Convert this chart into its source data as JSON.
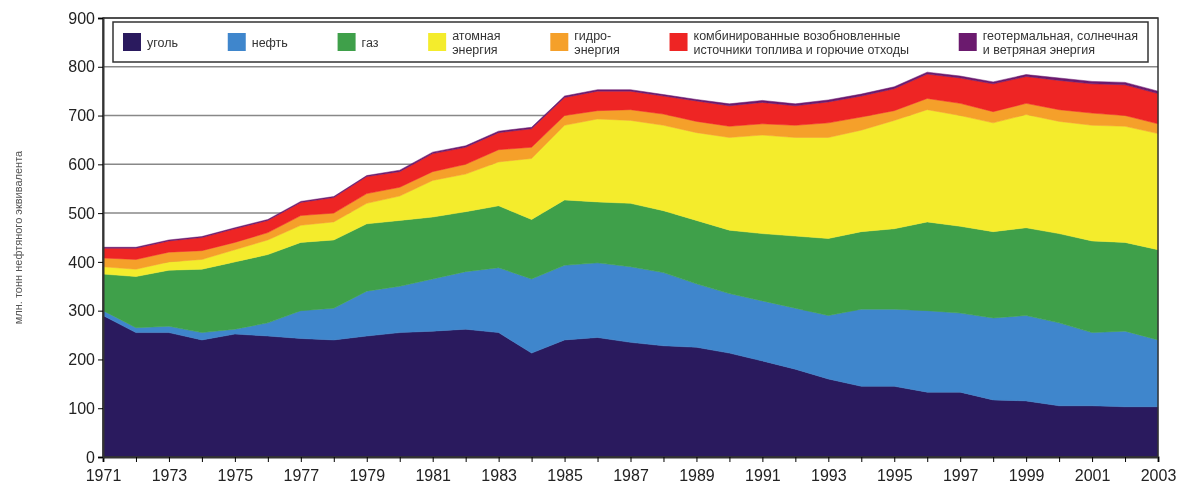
{
  "chart_data": {
    "type": "area",
    "stacked": true,
    "ylabel": "млн. тонн нефтяного эквивалента",
    "x": [
      1971,
      1972,
      1973,
      1974,
      1975,
      1976,
      1977,
      1978,
      1979,
      1980,
      1981,
      1982,
      1983,
      1984,
      1985,
      1986,
      1987,
      1988,
      1989,
      1990,
      1991,
      1992,
      1993,
      1994,
      1995,
      1996,
      1997,
      1998,
      1999,
      2000,
      2001,
      2002,
      2003
    ],
    "xlim": [
      1971,
      2003
    ],
    "xticks": [
      1971,
      {
        "value": 1972,
        "label": null
      },
      1973,
      {
        "value": 1974,
        "label": null
      },
      1975,
      {
        "value": 1976,
        "label": null
      },
      1977,
      {
        "value": 1978,
        "label": null
      },
      1979,
      {
        "value": 1980,
        "label": null
      },
      1981,
      {
        "value": 1982,
        "label": null
      },
      1983,
      {
        "value": 1984,
        "label": null
      },
      1985,
      {
        "value": 1986,
        "label": null
      },
      1987,
      {
        "value": 1988,
        "label": null
      },
      1989,
      {
        "value": 1990,
        "label": null
      },
      1991,
      {
        "value": 1992,
        "label": null
      },
      1993,
      {
        "value": 1994,
        "label": null
      },
      1995,
      {
        "value": 1996,
        "label": null
      },
      1997,
      {
        "value": 1998,
        "label": null
      },
      1999,
      {
        "value": 2000,
        "label": null
      },
      2001,
      {
        "value": 2002,
        "label": null
      },
      2003
    ],
    "ylim": [
      0,
      900
    ],
    "yticks": [
      0,
      100,
      200,
      300,
      400,
      500,
      600,
      700,
      800,
      900
    ],
    "grid": "y",
    "legend": "top",
    "series": [
      {
        "name": "уголь",
        "color": "#2a1a5e",
        "values": [
          290,
          255,
          255,
          240,
          252,
          248,
          243,
          240,
          248,
          255,
          258,
          262,
          255,
          213,
          240,
          245,
          235,
          228,
          225,
          213,
          197,
          180,
          160,
          145,
          145,
          133,
          133,
          117,
          115,
          105,
          105,
          103,
          103
        ]
      },
      {
        "name": "нефть",
        "color": "#3f86cc",
        "values": [
          10,
          10,
          13,
          15,
          10,
          27,
          57,
          65,
          92,
          95,
          107,
          118,
          133,
          152,
          153,
          153,
          155,
          150,
          130,
          122,
          123,
          125,
          130,
          158,
          158,
          167,
          162,
          168,
          175,
          170,
          150,
          155,
          137
        ]
      },
      {
        "name": "газ",
        "color": "#3fa04a",
        "values": [
          75,
          105,
          115,
          130,
          138,
          140,
          140,
          140,
          138,
          135,
          127,
          123,
          127,
          122,
          134,
          125,
          130,
          127,
          130,
          130,
          138,
          148,
          158,
          159,
          165,
          182,
          178,
          177,
          180,
          183,
          188,
          182,
          185
        ]
      },
      {
        "name": "атомная энергия",
        "color": "#f4ec2c",
        "values": [
          15,
          15,
          17,
          20,
          25,
          30,
          35,
          37,
          42,
          50,
          75,
          77,
          90,
          125,
          153,
          170,
          170,
          175,
          180,
          190,
          202,
          202,
          207,
          208,
          222,
          230,
          227,
          223,
          232,
          230,
          237,
          238,
          238
        ]
      },
      {
        "name": "гидро-энергия",
        "color": "#f5a02a",
        "values": [
          18,
          20,
          20,
          18,
          15,
          15,
          20,
          18,
          20,
          18,
          18,
          20,
          25,
          23,
          20,
          17,
          22,
          23,
          23,
          23,
          23,
          25,
          30,
          27,
          20,
          23,
          25,
          23,
          23,
          24,
          25,
          22,
          20
        ]
      },
      {
        "name": "комбинированные возобновленные источники топлива и горючие отходы",
        "color": "#ee2524",
        "values": [
          20,
          23,
          23,
          27,
          28,
          25,
          27,
          32,
          35,
          32,
          37,
          35,
          35,
          38,
          37,
          40,
          38,
          37,
          42,
          42,
          44,
          40,
          43,
          43,
          45,
          50,
          52,
          57,
          55,
          60,
          60,
          63,
          62
        ]
      },
      {
        "name": "геотермальная, солнечная и ветряная энергия",
        "color": "#6b1a6e",
        "values": [
          2,
          2,
          2,
          2,
          2,
          2,
          2,
          2,
          2,
          3,
          3,
          3,
          3,
          3,
          3,
          3,
          3,
          3,
          3,
          4,
          4,
          4,
          4,
          4,
          4,
          4,
          4,
          4,
          4,
          5,
          5,
          5,
          5
        ]
      }
    ]
  }
}
